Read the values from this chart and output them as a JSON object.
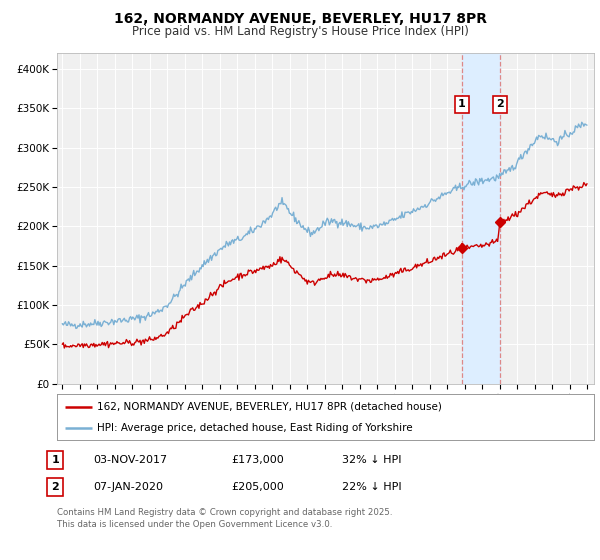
{
  "title": "162, NORMANDY AVENUE, BEVERLEY, HU17 8PR",
  "subtitle": "Price paid vs. HM Land Registry's House Price Index (HPI)",
  "title_fontsize": 10,
  "subtitle_fontsize": 8.5,
  "background_color": "#ffffff",
  "plot_background_color": "#f0f0f0",
  "grid_color": "#ffffff",
  "ylim": [
    0,
    420000
  ],
  "xlim_start": 1994.7,
  "xlim_end": 2025.4,
  "ytick_values": [
    0,
    50000,
    100000,
    150000,
    200000,
    250000,
    300000,
    350000,
    400000
  ],
  "ytick_labels": [
    "£0",
    "£50K",
    "£100K",
    "£150K",
    "£200K",
    "£250K",
    "£300K",
    "£350K",
    "£400K"
  ],
  "xtick_years": [
    1995,
    1996,
    1997,
    1998,
    1999,
    2000,
    2001,
    2002,
    2003,
    2004,
    2005,
    2006,
    2007,
    2008,
    2009,
    2010,
    2011,
    2012,
    2013,
    2014,
    2015,
    2016,
    2017,
    2018,
    2019,
    2020,
    2021,
    2022,
    2023,
    2024,
    2025
  ],
  "sale1_date": 2017.84,
  "sale1_price": 173000,
  "sale1_date_str": "03-NOV-2017",
  "sale1_price_str": "£173,000",
  "sale1_hpi_str": "32% ↓ HPI",
  "sale2_date": 2020.02,
  "sale2_price": 205000,
  "sale2_date_str": "07-JAN-2020",
  "sale2_price_str": "£205,000",
  "sale2_hpi_str": "22% ↓ HPI",
  "red_line_color": "#cc0000",
  "blue_line_color": "#7ab0d4",
  "marker_color": "#cc0000",
  "vline_color": "#dd8888",
  "vband_color": "#ddeeff",
  "legend_label_red": "162, NORMANDY AVENUE, BEVERLEY, HU17 8PR (detached house)",
  "legend_label_blue": "HPI: Average price, detached house, East Riding of Yorkshire",
  "footnote": "Contains HM Land Registry data © Crown copyright and database right 2025.\nThis data is licensed under the Open Government Licence v3.0."
}
